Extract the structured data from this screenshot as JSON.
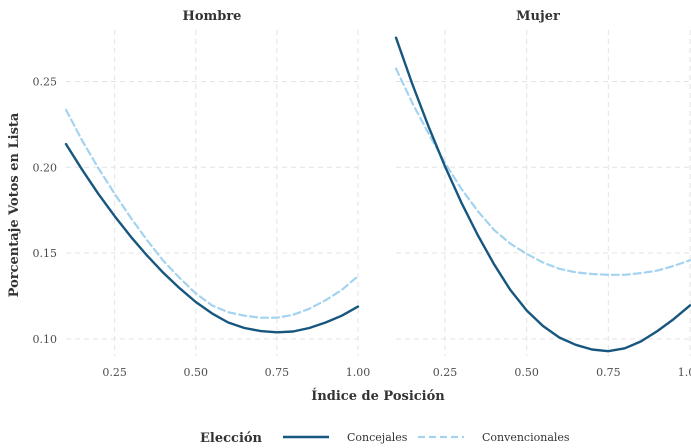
{
  "chart_data": {
    "type": "line",
    "xlabel": "Índice de Posición",
    "ylabel": "Porcentaje Votos en Lista",
    "xlim": [
      0.1,
      1.0
    ],
    "ylim": [
      0.09,
      0.28
    ],
    "x_ticks": [
      "0.25",
      "0.50",
      "0.75",
      "1.00"
    ],
    "x_tick_values": [
      0.25,
      0.5,
      0.75,
      1.0
    ],
    "y_ticks": [
      "0.10",
      "0.15",
      "0.20",
      "0.25"
    ],
    "y_tick_values": [
      0.1,
      0.15,
      0.2,
      0.25
    ],
    "grid": true,
    "legend": {
      "title": "Elección",
      "position": "bottom",
      "entries": [
        {
          "label": "Concejales",
          "color": "#17577f",
          "style": "solid"
        },
        {
          "label": "Convencionales",
          "color": "#a4d3ef",
          "style": "dashed"
        }
      ]
    },
    "panels": [
      {
        "title": "Hombre",
        "series": [
          {
            "name": "Concejales",
            "x": [
              0.1,
              0.15,
              0.2,
              0.25,
              0.3,
              0.35,
              0.4,
              0.45,
              0.5,
              0.55,
              0.6,
              0.65,
              0.7,
              0.75,
              0.8,
              0.85,
              0.9,
              0.95,
              1.0
            ],
            "y": [
              0.2135,
              0.1985,
              0.1845,
              0.1715,
              0.1595,
              0.1485,
              0.1385,
              0.1295,
              0.1215,
              0.1148,
              0.1095,
              0.1063,
              0.1045,
              0.1038,
              0.1043,
              0.1063,
              0.1095,
              0.1135,
              0.1188
            ]
          },
          {
            "name": "Convencionales",
            "x": [
              0.1,
              0.15,
              0.2,
              0.25,
              0.3,
              0.35,
              0.4,
              0.45,
              0.5,
              0.55,
              0.6,
              0.65,
              0.7,
              0.75,
              0.8,
              0.85,
              0.9,
              0.95,
              1.0
            ],
            "y": [
              0.2335,
              0.2155,
              0.1995,
              0.1845,
              0.1705,
              0.1575,
              0.1455,
              0.1355,
              0.1265,
              0.1195,
              0.1155,
              0.1135,
              0.1123,
              0.1123,
              0.114,
              0.1175,
              0.1225,
              0.1285,
              0.1365
            ]
          }
        ]
      },
      {
        "title": "Mujer",
        "series": [
          {
            "name": "Concejales",
            "x": [
              0.1,
              0.15,
              0.2,
              0.25,
              0.3,
              0.35,
              0.4,
              0.45,
              0.5,
              0.55,
              0.6,
              0.65,
              0.7,
              0.75,
              0.8,
              0.85,
              0.9,
              0.95,
              1.0
            ],
            "y": [
              0.2755,
              0.2485,
              0.2235,
              0.2005,
              0.1795,
              0.1605,
              0.1435,
              0.1285,
              0.1165,
              0.1075,
              0.1008,
              0.0965,
              0.0938,
              0.0928,
              0.0945,
              0.0985,
              0.1045,
              0.1115,
              0.1195
            ]
          },
          {
            "name": "Convencionales",
            "x": [
              0.1,
              0.15,
              0.2,
              0.25,
              0.3,
              0.35,
              0.4,
              0.45,
              0.5,
              0.55,
              0.6,
              0.65,
              0.7,
              0.75,
              0.8,
              0.85,
              0.9,
              0.95,
              1.0
            ],
            "y": [
              0.2575,
              0.2375,
              0.2195,
              0.2025,
              0.1875,
              0.1745,
              0.1635,
              0.1555,
              0.1495,
              0.1445,
              0.1408,
              0.1388,
              0.1378,
              0.1373,
              0.1373,
              0.1383,
              0.1398,
              0.1425,
              0.1458
            ]
          }
        ]
      }
    ]
  }
}
